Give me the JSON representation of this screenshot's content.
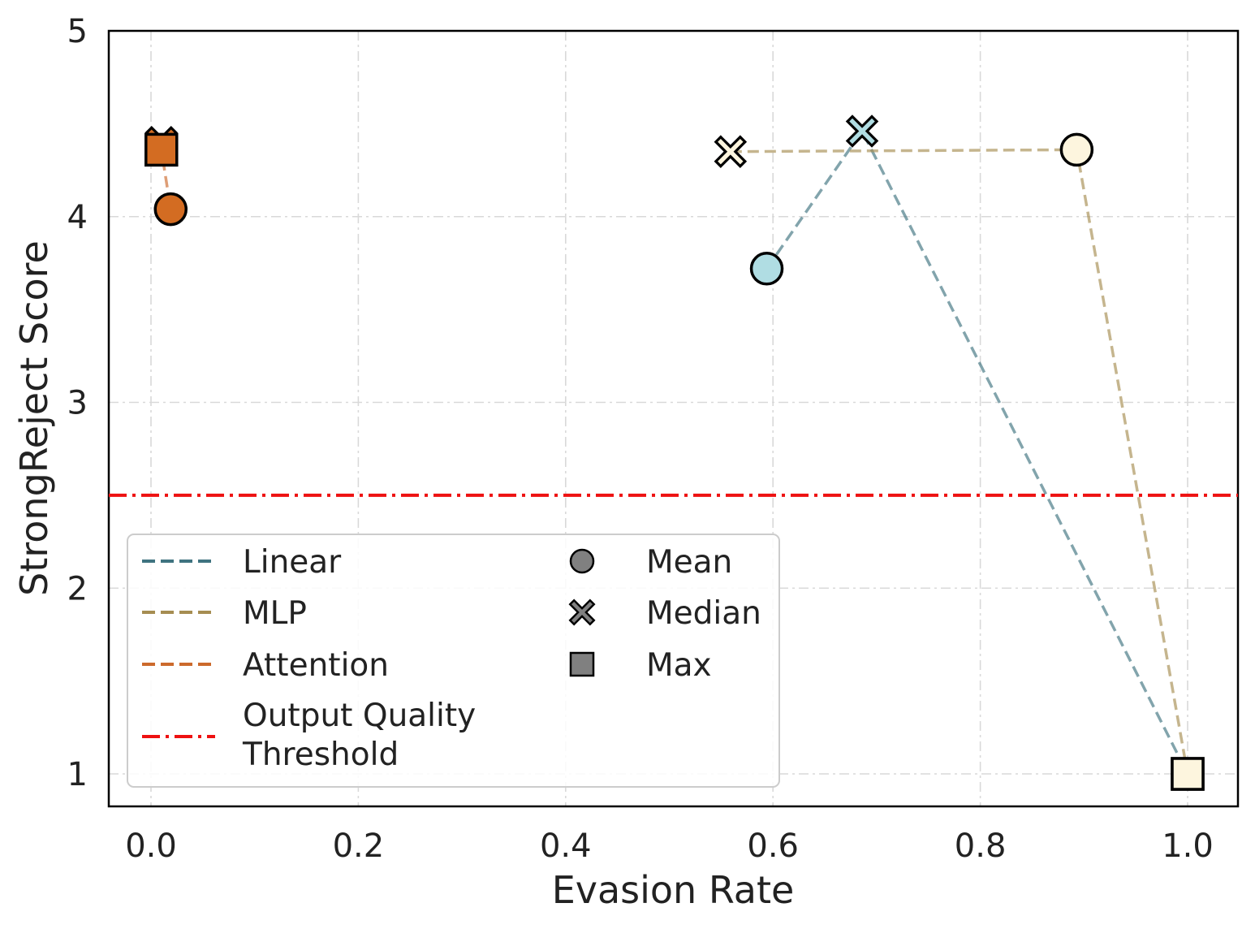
{
  "chart_data": {
    "type": "scatter",
    "title": "",
    "xlabel": "Evasion Rate",
    "ylabel": "StrongReject Score",
    "xlim": [
      -0.04,
      1.05
    ],
    "ylim": [
      0.85,
      5.0
    ],
    "xticks": [
      "0.0",
      "0.2",
      "0.4",
      "0.6",
      "0.8",
      "1.0"
    ],
    "xtick_values": [
      0.0,
      0.2,
      0.4,
      0.6,
      0.8,
      1.0
    ],
    "yticks": [
      "1",
      "2",
      "3",
      "4",
      "5"
    ],
    "ytick_values": [
      1,
      2,
      3,
      4,
      5
    ],
    "grid": true,
    "legend_placement": "lower-left",
    "series": [
      {
        "name": "Linear",
        "line_color": "#3f7380",
        "marker_color": "#b0dde3",
        "points": [
          {
            "stat": "Mean",
            "x": 0.594,
            "y": 3.72
          },
          {
            "stat": "Median",
            "x": 0.686,
            "y": 4.46
          },
          {
            "stat": "Max",
            "x": 1.0,
            "y": 1.0
          }
        ]
      },
      {
        "name": "MLP",
        "line_color": "#a68d52",
        "marker_color": "#fdf5de",
        "points": [
          {
            "stat": "Median",
            "x": 0.559,
            "y": 4.35
          },
          {
            "stat": "Mean",
            "x": 0.893,
            "y": 4.36
          },
          {
            "stat": "Max",
            "x": 1.0,
            "y": 1.0
          }
        ]
      },
      {
        "name": "Attention",
        "line_color": "#cc6a2c",
        "marker_color": "#d36c22",
        "points": [
          {
            "stat": "Median",
            "x": 0.01,
            "y": 4.4
          },
          {
            "stat": "Max",
            "x": 0.01,
            "y": 4.36
          },
          {
            "stat": "Mean",
            "x": 0.019,
            "y": 4.04
          }
        ]
      }
    ],
    "threshold": {
      "name": "Output Quality Threshold",
      "y": 2.5,
      "color": "#ee1111"
    },
    "legend": {
      "lines": [
        {
          "label": "Linear",
          "color": "#3f7380",
          "style": "dashed"
        },
        {
          "label": "MLP",
          "color": "#a68d52",
          "style": "dashed"
        },
        {
          "label": "Attention",
          "color": "#cc6a2c",
          "style": "dashed"
        },
        {
          "label_line1": "Output Quality",
          "label_line2": "Threshold",
          "color": "#ee1111",
          "style": "dashdot"
        }
      ],
      "markers": [
        {
          "label": "Mean",
          "shape": "circle"
        },
        {
          "label": "Median",
          "shape": "x"
        },
        {
          "label": "Max",
          "shape": "square"
        }
      ]
    }
  }
}
